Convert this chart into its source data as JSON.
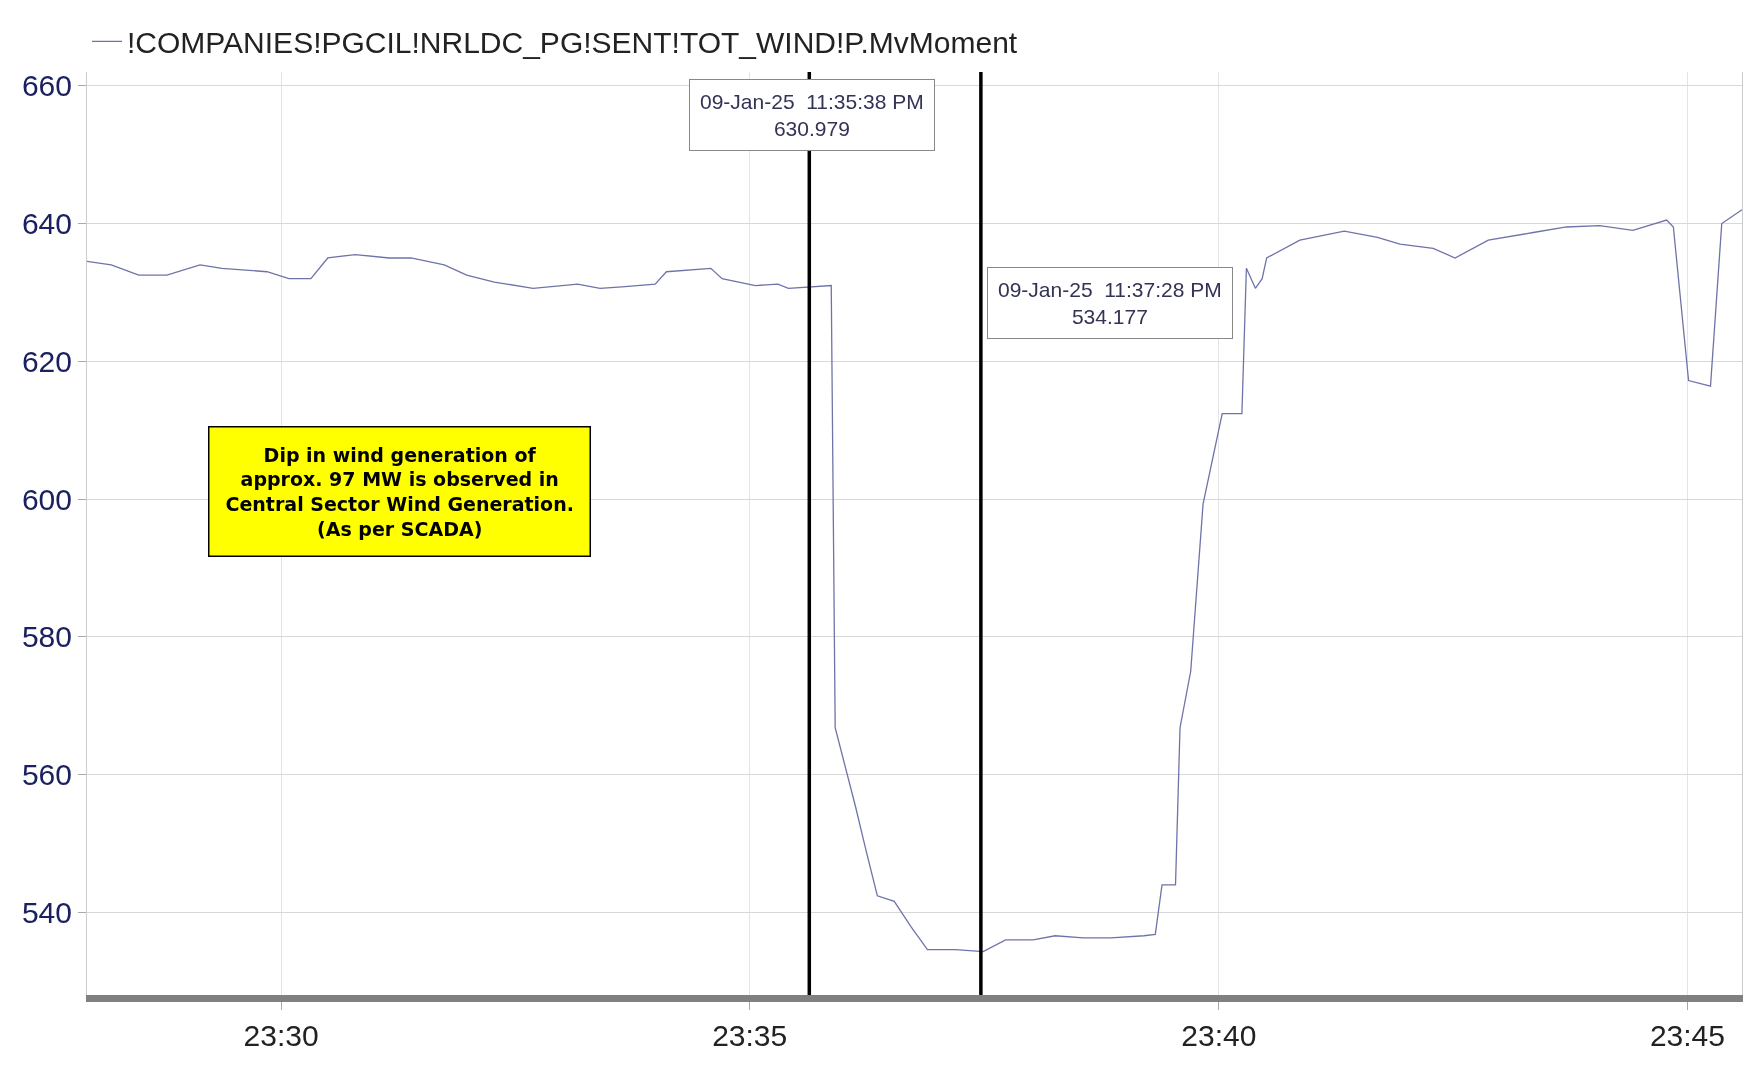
{
  "chart_data": {
    "type": "line",
    "x": [
      23.4655,
      23.4698,
      23.4747,
      23.4797,
      23.4856,
      23.4895,
      23.4975,
      23.5014,
      23.5053,
      23.5083,
      23.5132,
      23.5192,
      23.5231,
      23.529,
      23.533,
      23.5379,
      23.5448,
      23.5527,
      23.5567,
      23.5606,
      23.5665,
      23.5685,
      23.5764,
      23.5784,
      23.5843,
      23.5883,
      23.5902,
      23.5978,
      23.5985,
      23.6021,
      23.6041,
      23.606,
      23.609,
      23.612,
      23.6149,
      23.6199,
      23.6248,
      23.6288,
      23.6337,
      23.6376,
      23.6426,
      23.6475,
      23.6534,
      23.6554,
      23.6566,
      23.659,
      23.6598,
      23.6617,
      23.6639,
      23.6673,
      23.6708,
      23.6716,
      23.6732,
      23.6744,
      23.6752,
      23.6811,
      23.689,
      23.6949,
      23.6989,
      23.7048,
      23.7087,
      23.7146,
      23.7226,
      23.7285,
      23.7344,
      23.7403,
      23.7463,
      23.7475,
      23.7502,
      23.7541,
      23.7561,
      23.7597
    ],
    "series": [
      {
        "name": "!COMPANIES!PGCIL!NRLDC_PG!SENT!TOT_WIND!P.MvMoment",
        "color": "#6f73a8",
        "values": [
          634.5,
          634,
          632.5,
          632.5,
          634,
          633.5,
          633,
          632,
          632,
          635,
          635.5,
          635,
          635,
          634,
          632.5,
          631.5,
          630.6,
          631.2,
          630.6,
          630.8,
          631.2,
          633,
          633.5,
          632,
          631,
          631.2,
          630.6,
          631,
          566.8,
          555.4,
          548.6,
          542.4,
          541.6,
          537.9,
          534.6,
          534.6,
          534.3,
          536,
          536,
          536.6,
          536.3,
          536.3,
          536.6,
          536.8,
          544,
          544,
          566.8,
          575,
          599.3,
          612.4,
          612.4,
          633.5,
          630.6,
          632,
          635,
          637.6,
          638.9,
          638,
          637,
          636.4,
          635,
          637.6,
          638.7,
          639.5,
          639.7,
          639,
          640.5,
          639.5,
          617.2,
          616.4,
          640,
          642
        ]
      }
    ],
    "xlim": [
      23.4655,
      23.7597
    ],
    "xticks": [
      {
        "value": 23.5,
        "label": "23:30"
      },
      {
        "value": 23.5833,
        "label": "23:35"
      },
      {
        "value": 23.6667,
        "label": "23:40"
      },
      {
        "value": 23.75,
        "label": "23:45"
      }
    ],
    "ylim": [
      528,
      662
    ],
    "yticks": [
      540,
      560,
      580,
      600,
      620,
      640,
      660
    ],
    "ref_lines": [
      {
        "axis": "x",
        "value": 23.5939,
        "color": "#000000"
      },
      {
        "axis": "x",
        "value": 23.6244,
        "color": "#000000"
      }
    ],
    "annotations": [
      "09-Jan-25  11:35:38 PM\n630.979",
      "09-Jan-25  11:37:28 PM\n534.177",
      "Dip in wind generation of\napprox. 97 MW is observed in\nCentral Sector Wind Generation.\n(As per SCADA)"
    ],
    "grid": true,
    "legend": "top left",
    "marker": "none",
    "line_style": "solid"
  }
}
